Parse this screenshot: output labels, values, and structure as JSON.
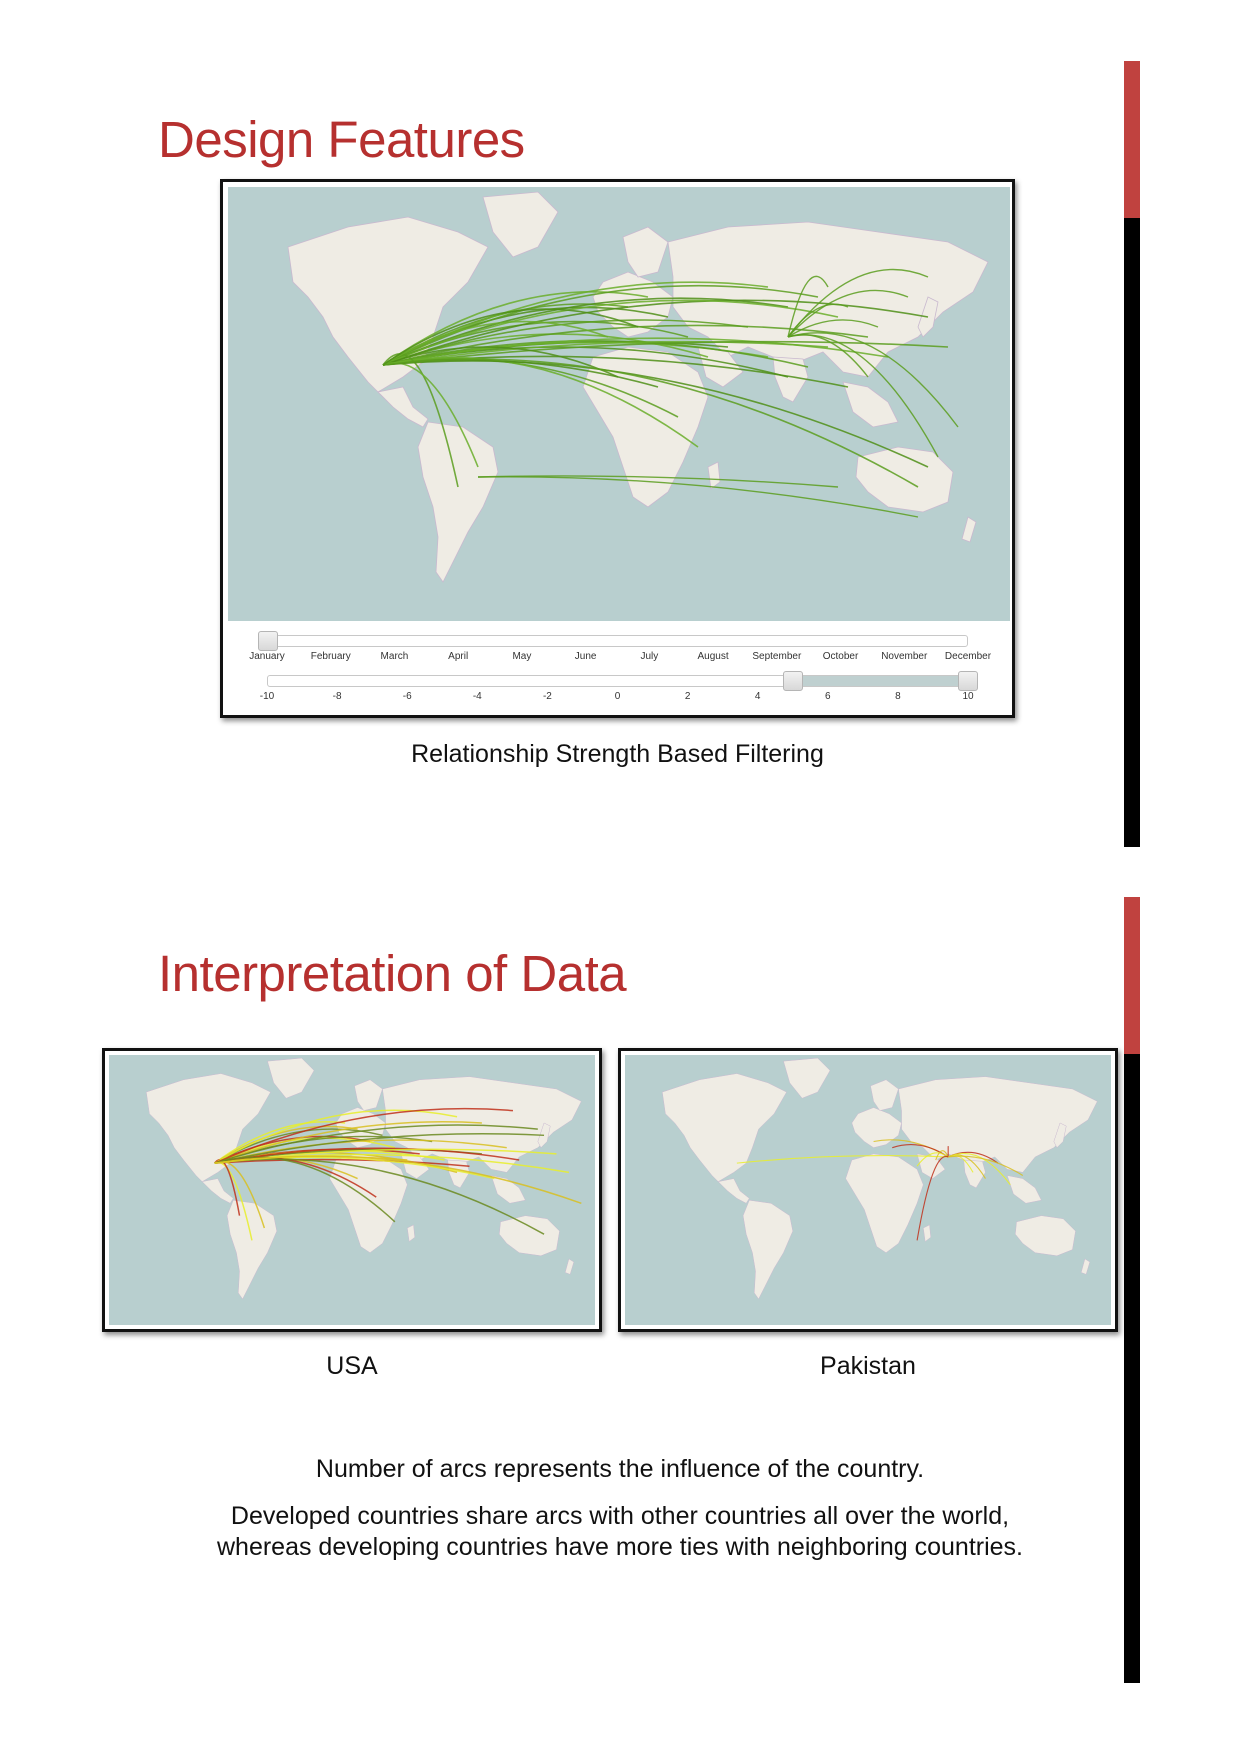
{
  "section1": {
    "title": "Design Features",
    "figure_caption": "Relationship Strength Based Filtering",
    "month_slider": {
      "labels": [
        "January",
        "February",
        "March",
        "April",
        "May",
        "June",
        "July",
        "August",
        "September",
        "October",
        "November",
        "December"
      ],
      "selected": "January"
    },
    "strength_slider": {
      "labels": [
        "-10",
        "-8",
        "-6",
        "-4",
        "-2",
        "0",
        "2",
        "4",
        "6",
        "8",
        "10"
      ],
      "range": [
        5,
        10
      ]
    },
    "arc_color": "#5a9e1e"
  },
  "section2": {
    "title": "Interpretation of Data",
    "left_caption": "USA",
    "right_caption": "Pakistan",
    "paragraph1": "Number of arcs represents the influence of the country.",
    "paragraph2": "Developed countries share arcs with other countries all over the world, whereas developing countries have more ties with neighboring countries.",
    "arc_colors": [
      "#e8ee2a",
      "#d8c020",
      "#c0301a",
      "#6a8a20"
    ]
  },
  "colors": {
    "accent_red": "#c0423f",
    "title_red": "#b6302f",
    "ocean": "#b8cfcf",
    "land": "#efece4"
  }
}
